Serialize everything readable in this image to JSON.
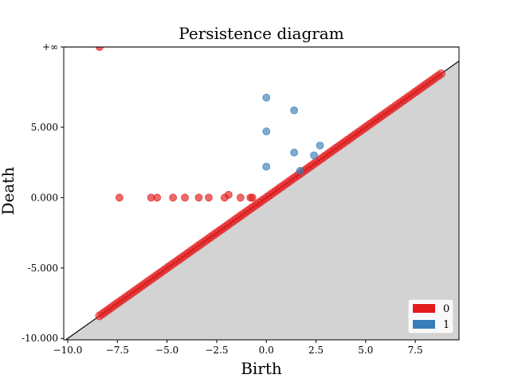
{
  "chart_data": {
    "type": "scatter",
    "title": "Persistence diagram",
    "xlabel": "Birth",
    "ylabel": "Death",
    "xlim": [
      -10.2,
      9.7
    ],
    "ylim": [
      -10.1,
      10.7
    ],
    "infinity_label": "+∞",
    "infinity_y": 10.7,
    "x_ticks": [
      {
        "value": -10.0,
        "label": "−10.0"
      },
      {
        "value": -7.5,
        "label": "−7.5"
      },
      {
        "value": -5.0,
        "label": "−5.0"
      },
      {
        "value": -2.5,
        "label": "−2.5"
      },
      {
        "value": 0.0,
        "label": "0.0"
      },
      {
        "value": 2.5,
        "label": "2.5"
      },
      {
        "value": 5.0,
        "label": "5.0"
      },
      {
        "value": 7.5,
        "label": "7.5"
      }
    ],
    "y_ticks": [
      {
        "value": -10.0,
        "label": "-10.000"
      },
      {
        "value": -5.0,
        "label": "-5.000"
      },
      {
        "value": 0.0,
        "label": "0.000"
      },
      {
        "value": 5.0,
        "label": "5.000"
      }
    ],
    "grid": false,
    "legend_position": "bottom-right",
    "diagonal_range": [
      -8.4,
      8.8
    ],
    "series": [
      {
        "name": "0",
        "color": "#e41a1c",
        "points": [
          {
            "x": -7.4,
            "y": 0.0
          },
          {
            "x": -5.8,
            "y": 0.0
          },
          {
            "x": -5.5,
            "y": 0.0
          },
          {
            "x": -4.7,
            "y": 0.0
          },
          {
            "x": -4.1,
            "y": 0.0
          },
          {
            "x": -3.4,
            "y": 0.0
          },
          {
            "x": -2.9,
            "y": 0.0
          },
          {
            "x": -2.1,
            "y": 0.0
          },
          {
            "x": -1.9,
            "y": 0.2
          },
          {
            "x": -1.3,
            "y": 0.0
          },
          {
            "x": -0.8,
            "y": 0.0
          },
          {
            "x": -0.7,
            "y": 0.0
          }
        ],
        "infinite_points": [
          {
            "x": -8.4
          }
        ]
      },
      {
        "name": "1",
        "color": "#377eb8",
        "points": [
          {
            "x": 0.0,
            "y": 7.1
          },
          {
            "x": 1.4,
            "y": 6.2
          },
          {
            "x": 0.0,
            "y": 4.7
          },
          {
            "x": 1.4,
            "y": 3.2
          },
          {
            "x": 2.7,
            "y": 3.7
          },
          {
            "x": 2.4,
            "y": 3.0
          },
          {
            "x": 0.0,
            "y": 2.2
          },
          {
            "x": 1.7,
            "y": 1.9
          }
        ],
        "infinite_points": []
      }
    ]
  }
}
